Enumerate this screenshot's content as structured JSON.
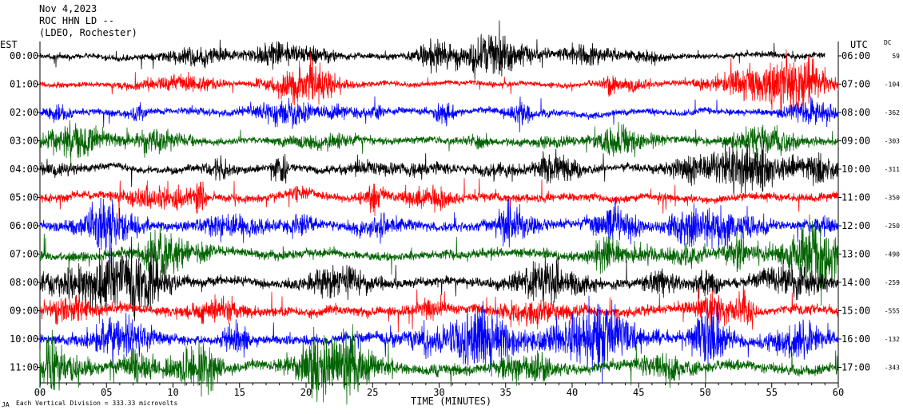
{
  "header": {
    "date": "Nov 4,2023",
    "station": "ROC HHN LD --",
    "network": "(LDEO, Rochester)"
  },
  "axes": {
    "left_title": "EST",
    "right_title": "UTC",
    "dc_title": "DC",
    "xlabel": "TIME (MINUTES)",
    "footer_mark": "JA",
    "footer": "Each Vertical Division = 333.33 microvolts"
  },
  "chart_data": {
    "type": "line",
    "title": "Nov 4,2023",
    "xlabel": "TIME (MINUTES)",
    "xlim": [
      0,
      60
    ],
    "x_ticks": [
      "00",
      "05",
      "10",
      "15",
      "20",
      "25",
      "30",
      "35",
      "40",
      "45",
      "50",
      "55",
      "60"
    ],
    "rows": [
      {
        "est": "00:00",
        "utc": "06:00",
        "dc": "59",
        "color": "#000000",
        "amplitude": 0.55,
        "end_minute": 59
      },
      {
        "est": "01:00",
        "utc": "07:00",
        "dc": "-104",
        "color": "#ff0000",
        "amplitude": 0.5,
        "end_minute": 60
      },
      {
        "est": "02:00",
        "utc": "08:00",
        "dc": "-362",
        "color": "#0000ff",
        "amplitude": 0.6,
        "end_minute": 60
      },
      {
        "est": "03:00",
        "utc": "09:00",
        "dc": "-303",
        "color": "#006400",
        "amplitude": 0.65,
        "end_minute": 60
      },
      {
        "est": "04:00",
        "utc": "10:00",
        "dc": "-311",
        "color": "#000000",
        "amplitude": 0.7,
        "end_minute": 60
      },
      {
        "est": "05:00",
        "utc": "11:00",
        "dc": "-350",
        "color": "#ff0000",
        "amplitude": 0.75,
        "end_minute": 60
      },
      {
        "est": "06:00",
        "utc": "12:00",
        "dc": "-250",
        "color": "#0000ff",
        "amplitude": 0.8,
        "end_minute": 60
      },
      {
        "est": "07:00",
        "utc": "13:00",
        "dc": "-490",
        "color": "#006400",
        "amplitude": 0.85,
        "end_minute": 60
      },
      {
        "est": "08:00",
        "utc": "14:00",
        "dc": "-259",
        "color": "#000000",
        "amplitude": 0.85,
        "end_minute": 60
      },
      {
        "est": "09:00",
        "utc": "15:00",
        "dc": "-555",
        "color": "#ff0000",
        "amplitude": 0.9,
        "end_minute": 60
      },
      {
        "est": "10:00",
        "utc": "16:00",
        "dc": "-132",
        "color": "#0000ff",
        "amplitude": 0.9,
        "end_minute": 60
      },
      {
        "est": "11:00",
        "utc": "17:00",
        "dc": "-343",
        "color": "#006400",
        "amplitude": 1.0,
        "end_minute": 60
      }
    ]
  }
}
